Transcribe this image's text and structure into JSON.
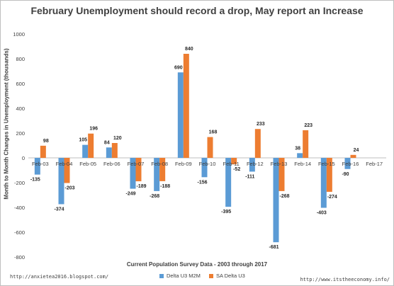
{
  "chart_data": {
    "type": "bar",
    "title": "February Unemployment should record a drop, May report an Increase",
    "xlabel": "Current Population Survey Data - 2003 through 2017",
    "ylabel": "Month to Month Changes in Unemployment (thousands)",
    "ylim": [
      -800,
      1000
    ],
    "yticks": [
      -800,
      -600,
      -400,
      -200,
      0,
      200,
      400,
      600,
      800,
      1000
    ],
    "categories": [
      "Feb-03",
      "Feb-04",
      "Feb-05",
      "Feb-06",
      "Feb-07",
      "Feb-08",
      "Feb-09",
      "Feb-10",
      "Feb-11",
      "Feb-12",
      "Feb-13",
      "Feb-14",
      "Feb-15",
      "Feb-16",
      "Feb-17"
    ],
    "series": [
      {
        "name": "Delta U3 M2M",
        "color": "#5b9bd5",
        "values": [
          -135,
          -374,
          105,
          84,
          -249,
          -268,
          690,
          -156,
          -395,
          -111,
          -681,
          38,
          -403,
          -90,
          null
        ]
      },
      {
        "name": "SA Delta U3",
        "color": "#ed7d31",
        "values": [
          98,
          -203,
          196,
          120,
          -189,
          -188,
          840,
          168,
          -52,
          233,
          -268,
          223,
          -274,
          24,
          null
        ]
      }
    ],
    "grid": false,
    "legend_position": "bottom"
  },
  "footer": {
    "left": "http://anxietea2016.blogspot.com/",
    "right": "http://www.itstheeconomy.info/"
  }
}
